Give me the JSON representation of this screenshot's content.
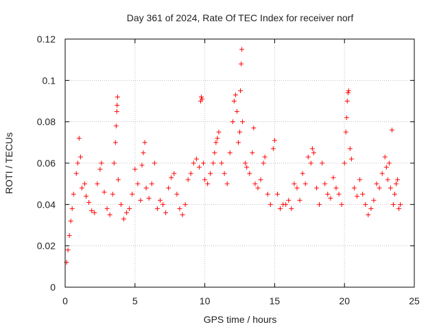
{
  "chart_data": {
    "type": "scatter",
    "title": "Day 361 of 2024, Rate Of TEC Index for receiver norf",
    "xlabel": "GPS time / hours",
    "ylabel": "ROTI / TECUs",
    "xlim": [
      0,
      25
    ],
    "ylim": [
      0,
      0.12
    ],
    "xticks": [
      0,
      5,
      10,
      15,
      20,
      25
    ],
    "yticks": [
      0,
      0.02,
      0.04,
      0.06,
      0.08,
      0.1,
      0.12
    ],
    "xtick_labels": [
      "0",
      "5",
      "10",
      "15",
      "20",
      "25"
    ],
    "ytick_labels": [
      "0",
      "0.02",
      "0.04",
      "0.06",
      "0.08",
      "0.1",
      "0.12"
    ],
    "grid": true,
    "legend": "none",
    "marker": "plus",
    "color": "#ff0000",
    "series": [
      {
        "points": [
          [
            0.1,
            0.012
          ],
          [
            0.2,
            0.018
          ],
          [
            0.3,
            0.025
          ],
          [
            0.4,
            0.032
          ],
          [
            0.5,
            0.038
          ],
          [
            0.6,
            0.045
          ],
          [
            0.8,
            0.055
          ],
          [
            0.9,
            0.06
          ],
          [
            1.0,
            0.072
          ],
          [
            1.1,
            0.063
          ],
          [
            1.2,
            0.048
          ],
          [
            1.4,
            0.05
          ],
          [
            1.5,
            0.044
          ],
          [
            1.7,
            0.041
          ],
          [
            1.9,
            0.037
          ],
          [
            2.1,
            0.036
          ],
          [
            2.3,
            0.05
          ],
          [
            2.5,
            0.057
          ],
          [
            2.6,
            0.06
          ],
          [
            2.8,
            0.046
          ],
          [
            3.0,
            0.038
          ],
          [
            3.2,
            0.035
          ],
          [
            3.4,
            0.045
          ],
          [
            3.5,
            0.06
          ],
          [
            3.6,
            0.07
          ],
          [
            3.65,
            0.078
          ],
          [
            3.7,
            0.085
          ],
          [
            3.72,
            0.088
          ],
          [
            3.75,
            0.092
          ],
          [
            3.8,
            0.052
          ],
          [
            4.0,
            0.04
          ],
          [
            4.2,
            0.033
          ],
          [
            4.4,
            0.036
          ],
          [
            4.6,
            0.038
          ],
          [
            4.8,
            0.045
          ],
          [
            5.0,
            0.057
          ],
          [
            5.2,
            0.05
          ],
          [
            5.4,
            0.042
          ],
          [
            5.5,
            0.059
          ],
          [
            5.6,
            0.065
          ],
          [
            5.7,
            0.07
          ],
          [
            5.8,
            0.048
          ],
          [
            6.0,
            0.043
          ],
          [
            6.2,
            0.05
          ],
          [
            6.4,
            0.06
          ],
          [
            6.6,
            0.038
          ],
          [
            6.8,
            0.042
          ],
          [
            7.0,
            0.04
          ],
          [
            7.2,
            0.036
          ],
          [
            7.4,
            0.048
          ],
          [
            7.6,
            0.053
          ],
          [
            7.8,
            0.055
          ],
          [
            8.0,
            0.045
          ],
          [
            8.2,
            0.038
          ],
          [
            8.4,
            0.035
          ],
          [
            8.6,
            0.04
          ],
          [
            8.8,
            0.052
          ],
          [
            9.0,
            0.055
          ],
          [
            9.2,
            0.06
          ],
          [
            9.4,
            0.062
          ],
          [
            9.6,
            0.058
          ],
          [
            9.7,
            0.09
          ],
          [
            9.75,
            0.092
          ],
          [
            9.8,
            0.091
          ],
          [
            9.9,
            0.06
          ],
          [
            10.0,
            0.052
          ],
          [
            10.2,
            0.05
          ],
          [
            10.4,
            0.055
          ],
          [
            10.6,
            0.06
          ],
          [
            10.7,
            0.065
          ],
          [
            10.8,
            0.07
          ],
          [
            10.9,
            0.072
          ],
          [
            11.0,
            0.075
          ],
          [
            11.2,
            0.06
          ],
          [
            11.4,
            0.055
          ],
          [
            11.6,
            0.05
          ],
          [
            11.8,
            0.065
          ],
          [
            12.0,
            0.08
          ],
          [
            12.1,
            0.09
          ],
          [
            12.2,
            0.093
          ],
          [
            12.3,
            0.085
          ],
          [
            12.4,
            0.07
          ],
          [
            12.5,
            0.075
          ],
          [
            12.55,
            0.095
          ],
          [
            12.6,
            0.108
          ],
          [
            12.65,
            0.115
          ],
          [
            12.7,
            0.08
          ],
          [
            12.9,
            0.06
          ],
          [
            13.0,
            0.058
          ],
          [
            13.2,
            0.055
          ],
          [
            13.4,
            0.065
          ],
          [
            13.5,
            0.077
          ],
          [
            13.6,
            0.05
          ],
          [
            13.8,
            0.048
          ],
          [
            14.0,
            0.052
          ],
          [
            14.2,
            0.06
          ],
          [
            14.3,
            0.063
          ],
          [
            14.5,
            0.045
          ],
          [
            14.7,
            0.04
          ],
          [
            14.9,
            0.067
          ],
          [
            15.0,
            0.071
          ],
          [
            15.2,
            0.045
          ],
          [
            15.4,
            0.038
          ],
          [
            15.6,
            0.04
          ],
          [
            15.8,
            0.04
          ],
          [
            16.0,
            0.042
          ],
          [
            16.2,
            0.038
          ],
          [
            16.4,
            0.05
          ],
          [
            16.6,
            0.048
          ],
          [
            16.8,
            0.042
          ],
          [
            17.0,
            0.055
          ],
          [
            17.2,
            0.05
          ],
          [
            17.4,
            0.063
          ],
          [
            17.6,
            0.06
          ],
          [
            17.7,
            0.067
          ],
          [
            17.8,
            0.065
          ],
          [
            18.0,
            0.048
          ],
          [
            18.2,
            0.04
          ],
          [
            18.4,
            0.06
          ],
          [
            18.6,
            0.05
          ],
          [
            18.8,
            0.045
          ],
          [
            19.0,
            0.043
          ],
          [
            19.2,
            0.053
          ],
          [
            19.4,
            0.048
          ],
          [
            19.6,
            0.045
          ],
          [
            19.8,
            0.04
          ],
          [
            20.0,
            0.06
          ],
          [
            20.1,
            0.075
          ],
          [
            20.15,
            0.082
          ],
          [
            20.2,
            0.09
          ],
          [
            20.25,
            0.094
          ],
          [
            20.3,
            0.095
          ],
          [
            20.4,
            0.067
          ],
          [
            20.5,
            0.062
          ],
          [
            20.7,
            0.048
          ],
          [
            20.9,
            0.044
          ],
          [
            21.1,
            0.052
          ],
          [
            21.3,
            0.045
          ],
          [
            21.5,
            0.04
          ],
          [
            21.7,
            0.035
          ],
          [
            21.9,
            0.038
          ],
          [
            22.1,
            0.042
          ],
          [
            22.3,
            0.05
          ],
          [
            22.5,
            0.048
          ],
          [
            22.7,
            0.055
          ],
          [
            22.9,
            0.063
          ],
          [
            23.0,
            0.058
          ],
          [
            23.1,
            0.052
          ],
          [
            23.2,
            0.06
          ],
          [
            23.3,
            0.048
          ],
          [
            23.4,
            0.076
          ],
          [
            23.5,
            0.04
          ],
          [
            23.6,
            0.045
          ],
          [
            23.7,
            0.05
          ],
          [
            23.8,
            0.052
          ],
          [
            23.9,
            0.038
          ],
          [
            24.0,
            0.04
          ]
        ]
      }
    ]
  }
}
